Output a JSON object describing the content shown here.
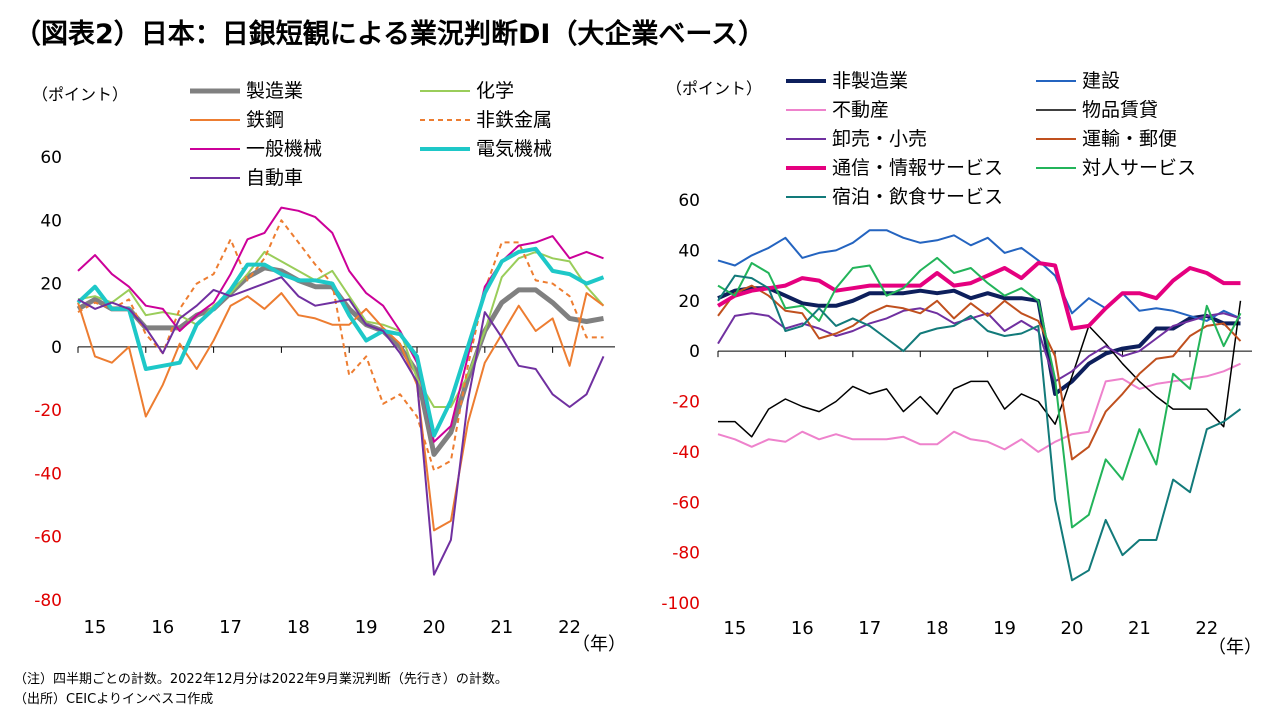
{
  "title": "（図表2）日本：日銀短観による業況判断DI（大企業ベース）",
  "notes": {
    "note": "（注）四半期ごとの計数。2022年12月分は2022年9月業況判断（先行き）の計数。",
    "source": "（出所）CEICよりインベスコ作成"
  },
  "chart_data": [
    {
      "type": "line",
      "ylabel": "（ポイント）",
      "xlabel_unit": "（年）",
      "ylim": [
        -80,
        60
      ],
      "yticks": [
        60,
        40,
        20,
        0,
        -20,
        -40,
        -60,
        -80
      ],
      "xlim": [
        2015,
        2022.92
      ],
      "xticks": [
        {
          "value": 2015.25,
          "label": "15"
        },
        {
          "value": 2016.25,
          "label": "16"
        },
        {
          "value": 2017.25,
          "label": "17"
        },
        {
          "value": 2018.25,
          "label": "18"
        },
        {
          "value": 2019.25,
          "label": "19"
        },
        {
          "value": 2020.25,
          "label": "20"
        },
        {
          "value": 2021.25,
          "label": "21"
        },
        {
          "value": 2022.25,
          "label": "22"
        }
      ],
      "x": [
        2015.0,
        2015.25,
        2015.5,
        2015.75,
        2016.0,
        2016.25,
        2016.5,
        2016.75,
        2017.0,
        2017.25,
        2017.5,
        2017.75,
        2018.0,
        2018.25,
        2018.5,
        2018.75,
        2019.0,
        2019.25,
        2019.5,
        2019.75,
        2020.0,
        2020.25,
        2020.5,
        2020.75,
        2021.0,
        2021.25,
        2021.5,
        2021.75,
        2022.0,
        2022.25,
        2022.5,
        2022.75
      ],
      "series": [
        {
          "name": "製造業",
          "color": "#808080",
          "width": 5,
          "dash": "",
          "values": [
            12,
            15,
            12,
            12,
            6,
            6,
            6,
            10,
            12,
            17,
            22,
            25,
            24,
            21,
            19,
            19,
            12,
            7,
            5,
            0,
            -8,
            -34,
            -27,
            -10,
            5,
            14,
            18,
            18,
            14,
            9,
            8,
            9
          ]
        },
        {
          "name": "化学",
          "color": "#9ACD5A",
          "width": 2,
          "dash": "",
          "values": [
            15,
            16,
            14,
            18,
            10,
            11,
            10,
            7,
            13,
            17,
            23,
            30,
            27,
            24,
            21,
            24,
            16,
            8,
            7,
            5,
            -10,
            -19,
            -19,
            -9,
            5,
            22,
            28,
            30,
            28,
            27,
            19,
            13
          ]
        },
        {
          "name": "鉄鋼",
          "color": "#ED7D31",
          "width": 2,
          "dash": "",
          "values": [
            14,
            -3,
            -5,
            0,
            -22,
            -12,
            1,
            -7,
            2,
            13,
            16,
            12,
            17,
            10,
            9,
            7,
            7,
            12,
            6,
            1,
            -12,
            -58,
            -55,
            -24,
            -5,
            4,
            13,
            5,
            9,
            -6,
            17,
            13
          ]
        },
        {
          "name": "非鉄金属",
          "color": "#ED7D31",
          "width": 2,
          "dash": "5,4",
          "values": [
            11,
            14,
            12,
            15,
            4,
            -2,
            12,
            20,
            23,
            34,
            21,
            28,
            40,
            33,
            26,
            20,
            -9,
            -3,
            -18,
            -15,
            -22,
            -39,
            -36,
            -6,
            18,
            33,
            33,
            21,
            20,
            16,
            3,
            3
          ]
        },
        {
          "name": "一般機械",
          "color": "#CC0099",
          "width": 2,
          "dash": "",
          "values": [
            24,
            29,
            23,
            19,
            13,
            12,
            5,
            10,
            14,
            23,
            34,
            36,
            44,
            43,
            41,
            36,
            24,
            17,
            13,
            5,
            -5,
            -30,
            -25,
            -3,
            19,
            27,
            32,
            33,
            35,
            28,
            30,
            28
          ]
        },
        {
          "name": "電気機械",
          "color": "#1EC8C8",
          "width": 4,
          "dash": "",
          "values": [
            14,
            19,
            12,
            12,
            -7,
            -6,
            -5,
            7,
            12,
            18,
            26,
            26,
            23,
            21,
            21,
            20,
            10,
            2,
            5,
            4,
            -3,
            -28,
            -17,
            0,
            17,
            27,
            30,
            31,
            24,
            23,
            20,
            22
          ]
        },
        {
          "name": "自動車",
          "color": "#7030A0",
          "width": 2,
          "dash": "",
          "values": [
            15,
            12,
            14,
            12,
            6,
            -2,
            9,
            13,
            18,
            16,
            18,
            20,
            22,
            16,
            13,
            14,
            15,
            7,
            5,
            -2,
            -11,
            -72,
            -61,
            -17,
            11,
            3,
            -6,
            -7,
            -15,
            -19,
            -15,
            -3
          ]
        }
      ]
    },
    {
      "type": "line",
      "ylabel": "（ポイント）",
      "xlabel_unit": "（年）",
      "ylim": [
        -100,
        60
      ],
      "yticks": [
        60,
        40,
        20,
        0,
        -20,
        -40,
        -60,
        -80,
        -100
      ],
      "xlim": [
        2015,
        2022.92
      ],
      "xticks": [
        {
          "value": 2015.25,
          "label": "15"
        },
        {
          "value": 2016.25,
          "label": "16"
        },
        {
          "value": 2017.25,
          "label": "17"
        },
        {
          "value": 2018.25,
          "label": "18"
        },
        {
          "value": 2019.25,
          "label": "19"
        },
        {
          "value": 2020.25,
          "label": "20"
        },
        {
          "value": 2021.25,
          "label": "21"
        },
        {
          "value": 2022.25,
          "label": "22"
        }
      ],
      "x": [
        2015.0,
        2015.25,
        2015.5,
        2015.75,
        2016.0,
        2016.25,
        2016.5,
        2016.75,
        2017.0,
        2017.25,
        2017.5,
        2017.75,
        2018.0,
        2018.25,
        2018.5,
        2018.75,
        2019.0,
        2019.25,
        2019.5,
        2019.75,
        2020.0,
        2020.25,
        2020.5,
        2020.75,
        2021.0,
        2021.25,
        2021.5,
        2021.75,
        2022.0,
        2022.25,
        2022.5,
        2022.75
      ],
      "series": [
        {
          "name": "非製造業",
          "color": "#0D1F5C",
          "width": 4,
          "dash": "",
          "values": [
            21,
            24,
            25,
            25,
            22,
            19,
            18,
            18,
            20,
            23,
            23,
            23,
            24,
            23,
            24,
            21,
            23,
            21,
            21,
            20,
            -17,
            -12,
            -5,
            -1,
            1,
            2,
            9,
            9,
            13,
            14,
            11,
            11
          ]
        },
        {
          "name": "建設",
          "color": "#2464C0",
          "width": 2,
          "dash": "",
          "values": [
            36,
            34,
            38,
            41,
            45,
            37,
            39,
            40,
            43,
            48,
            48,
            45,
            43,
            44,
            46,
            42,
            45,
            39,
            41,
            36,
            30,
            15,
            21,
            17,
            23,
            16,
            17,
            16,
            14,
            12,
            16,
            13
          ]
        },
        {
          "name": "不動産",
          "color": "#EE82CC",
          "width": 2,
          "dash": "",
          "values": [
            -33,
            -35,
            -38,
            -35,
            -36,
            -32,
            -35,
            -33,
            -35,
            -35,
            -35,
            -34,
            -37,
            -37,
            -32,
            -35,
            -36,
            -39,
            -35,
            -40,
            -36,
            -33,
            -32,
            -12,
            -11,
            -15,
            -13,
            -12,
            -11,
            -10,
            -8,
            -5
          ]
        },
        {
          "name": "物品賃貸",
          "color": "#000000",
          "width": 1.5,
          "dash": "",
          "values": [
            -28,
            -28,
            -34,
            -23,
            -19,
            -22,
            -24,
            -20,
            -14,
            -17,
            -15,
            -24,
            -18,
            -25,
            -15,
            -12,
            -12,
            -23,
            -17,
            -20,
            -29,
            -10,
            10,
            3,
            -5,
            -12,
            -18,
            -23,
            -23,
            -23,
            -30,
            20
          ]
        },
        {
          "name": "卸売・小売",
          "color": "#7030A0",
          "width": 2,
          "dash": "",
          "values": [
            3,
            14,
            15,
            14,
            9,
            11,
            9,
            6,
            8,
            11,
            13,
            16,
            17,
            15,
            11,
            13,
            15,
            8,
            12,
            8,
            -12,
            -8,
            -2,
            2,
            -2,
            0,
            5,
            10,
            12,
            14,
            15,
            13
          ]
        },
        {
          "name": "運輸・郵便",
          "color": "#C0501E",
          "width": 2,
          "dash": "",
          "values": [
            14,
            23,
            26,
            22,
            16,
            15,
            5,
            7,
            10,
            15,
            18,
            17,
            15,
            20,
            13,
            19,
            14,
            20,
            15,
            12,
            -2,
            -43,
            -38,
            -24,
            -17,
            -9,
            -3,
            -2,
            6,
            10,
            11,
            4
          ]
        },
        {
          "name": "通信・情報サービス",
          "color": "#E5007F",
          "width": 4,
          "dash": "",
          "values": [
            18,
            22,
            24,
            25,
            26,
            29,
            28,
            24,
            25,
            26,
            26,
            26,
            26,
            31,
            26,
            27,
            30,
            33,
            29,
            35,
            34,
            9,
            10,
            17,
            23,
            23,
            21,
            28,
            33,
            31,
            27,
            27
          ]
        },
        {
          "name": "対人サービス",
          "color": "#23B45A",
          "width": 2,
          "dash": "",
          "values": [
            26,
            22,
            35,
            31,
            17,
            18,
            12,
            25,
            33,
            34,
            22,
            25,
            32,
            37,
            31,
            33,
            27,
            22,
            25,
            20,
            -11,
            -70,
            -65,
            -43,
            -51,
            -31,
            -45,
            -9,
            -15,
            18,
            2,
            15
          ]
        },
        {
          "name": "宿泊・飲食サービス",
          "color": "#127A7A",
          "width": 2,
          "dash": "",
          "values": [
            20,
            30,
            29,
            25,
            8,
            10,
            17,
            10,
            13,
            10,
            5,
            0,
            7,
            9,
            10,
            14,
            8,
            6,
            7,
            10,
            -59,
            -91,
            -87,
            -67,
            -81,
            -75,
            -75,
            -51,
            -56,
            -31,
            -28,
            -23
          ]
        }
      ]
    }
  ]
}
